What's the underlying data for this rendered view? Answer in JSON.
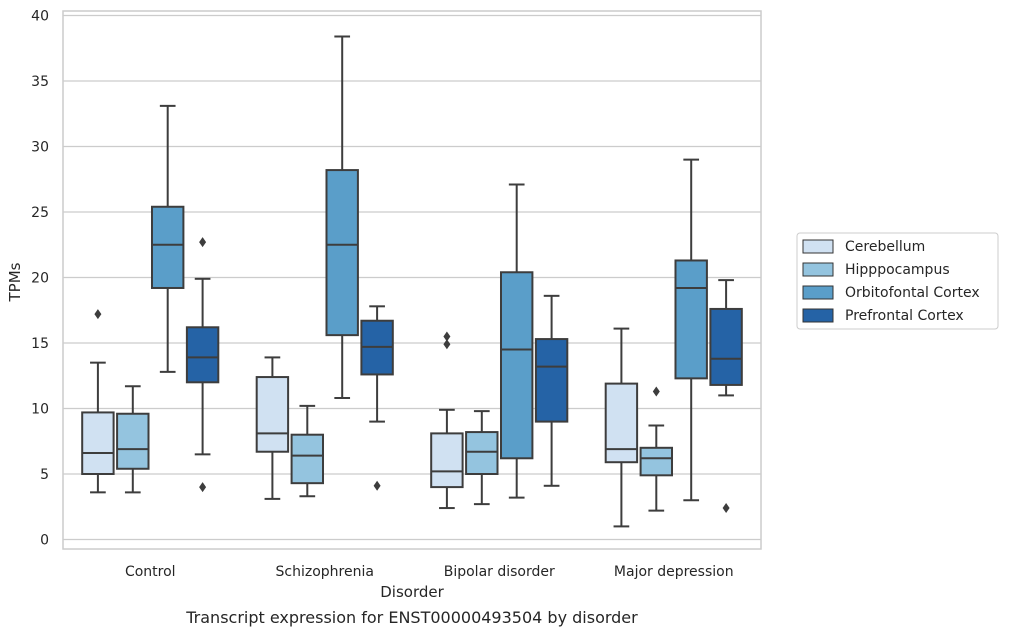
{
  "chart_data": {
    "type": "box",
    "caption": "Transcript expression for ENST00000493504 by disorder",
    "xlabel": "Disorder",
    "ylabel": "TPMs",
    "ylim": [
      -0.8,
      40.3
    ],
    "yticks": [
      0,
      5,
      10,
      15,
      20,
      25,
      30,
      35,
      40
    ],
    "grid": true,
    "legend_position": "right",
    "categories": [
      "Control",
      "Schizophrenia",
      "Bipolar disorder",
      "Major depression"
    ],
    "series": [
      {
        "name": "Cerebellum",
        "color": "#d0e1f2",
        "boxes": [
          {
            "whisker_low": 3.6,
            "q1": 5.0,
            "median": 6.6,
            "q3": 9.7,
            "whisker_high": 13.5,
            "outliers": [
              17.2
            ]
          },
          {
            "whisker_low": 3.1,
            "q1": 6.7,
            "median": 8.1,
            "q3": 12.4,
            "whisker_high": 13.9,
            "outliers": []
          },
          {
            "whisker_low": 2.4,
            "q1": 4.0,
            "median": 5.2,
            "q3": 8.1,
            "whisker_high": 9.9,
            "outliers": [
              15.5,
              14.9
            ]
          },
          {
            "whisker_low": 1.0,
            "q1": 5.9,
            "median": 6.9,
            "q3": 11.9,
            "whisker_high": 16.1,
            "outliers": []
          }
        ]
      },
      {
        "name": "Hipppocampus",
        "color": "#94c4df",
        "boxes": [
          {
            "whisker_low": 3.6,
            "q1": 5.4,
            "median": 6.9,
            "q3": 9.6,
            "whisker_high": 11.7,
            "outliers": []
          },
          {
            "whisker_low": 3.3,
            "q1": 4.3,
            "median": 6.4,
            "q3": 8.0,
            "whisker_high": 10.2,
            "outliers": []
          },
          {
            "whisker_low": 2.7,
            "q1": 5.0,
            "median": 6.7,
            "q3": 8.2,
            "whisker_high": 9.8,
            "outliers": []
          },
          {
            "whisker_low": 2.2,
            "q1": 4.9,
            "median": 6.2,
            "q3": 7.0,
            "whisker_high": 8.7,
            "outliers": [
              11.3
            ]
          }
        ]
      },
      {
        "name": "Orbitofontal Cortex",
        "color": "#5a9ec9",
        "boxes": [
          {
            "whisker_low": 12.8,
            "q1": 19.2,
            "median": 22.5,
            "q3": 25.4,
            "whisker_high": 33.1,
            "outliers": []
          },
          {
            "whisker_low": 10.8,
            "q1": 15.6,
            "median": 22.5,
            "q3": 28.2,
            "whisker_high": 38.4,
            "outliers": []
          },
          {
            "whisker_low": 3.2,
            "q1": 6.2,
            "median": 14.5,
            "q3": 20.4,
            "whisker_high": 27.1,
            "outliers": []
          },
          {
            "whisker_low": 3.0,
            "q1": 12.3,
            "median": 19.2,
            "q3": 21.3,
            "whisker_high": 29.0,
            "outliers": []
          }
        ]
      },
      {
        "name": "Prefrontal Cortex",
        "color": "#2563a6",
        "boxes": [
          {
            "whisker_low": 6.5,
            "q1": 12.0,
            "median": 13.9,
            "q3": 16.2,
            "whisker_high": 19.9,
            "outliers": [
              22.7,
              4.0
            ]
          },
          {
            "whisker_low": 9.0,
            "q1": 12.6,
            "median": 14.7,
            "q3": 16.7,
            "whisker_high": 17.8,
            "outliers": [
              4.1
            ]
          },
          {
            "whisker_low": 4.1,
            "q1": 9.0,
            "median": 13.2,
            "q3": 15.3,
            "whisker_high": 18.6,
            "outliers": []
          },
          {
            "whisker_low": 11.0,
            "q1": 11.8,
            "median": 13.8,
            "q3": 17.6,
            "whisker_high": 19.8,
            "outliers": [
              2.4
            ]
          }
        ]
      }
    ]
  }
}
